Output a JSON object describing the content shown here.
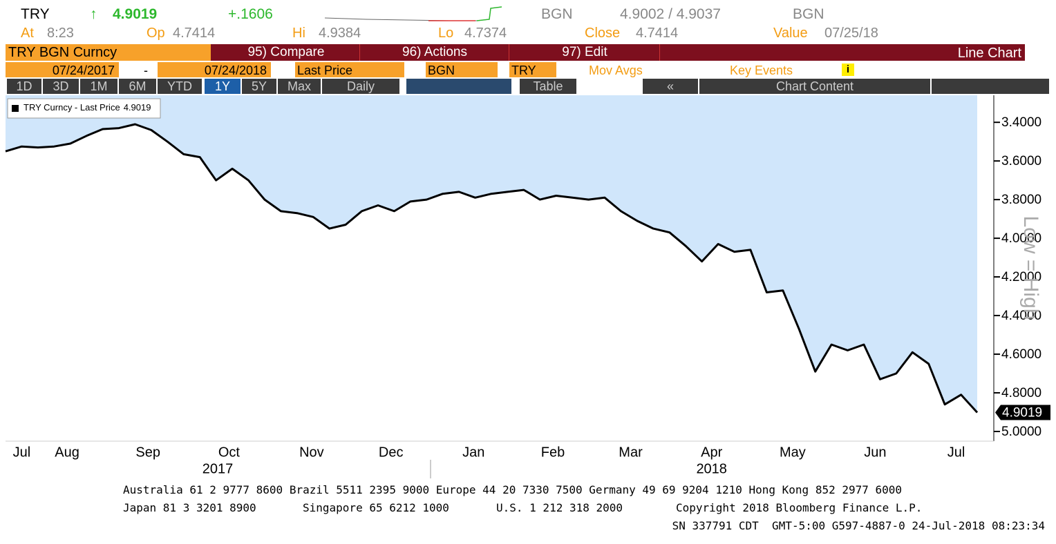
{
  "header": {
    "ticker": "TRY",
    "arrow": "↑",
    "last": "4.9019",
    "change": "+.1606",
    "source": "BGN",
    "bid_ask": "4.9002 / 4.9037",
    "source2": "BGN",
    "stats": [
      {
        "label": "At",
        "value": "8:23"
      },
      {
        "label": "Op",
        "value": "4.7414"
      },
      {
        "label": "Hi",
        "value": "4.9384"
      },
      {
        "label": "Lo",
        "value": "4.7374"
      },
      {
        "label": "Close",
        "value": "4.7414"
      },
      {
        "label": "Value",
        "value": "07/25/18"
      }
    ]
  },
  "menu": {
    "security": "TRY BGN Curncy",
    "items": [
      "95) Compare",
      "96) Actions",
      "97) Edit"
    ],
    "view": "Line Chart"
  },
  "controls": {
    "start": "07/24/2017",
    "dash": "-",
    "end": "07/24/2018",
    "field": "Last Price",
    "source": "BGN",
    "currency": "TRY",
    "mov_avgs": "Mov Avgs",
    "key_events": "Key Events",
    "info": "i"
  },
  "toolbar": {
    "periods": [
      "1D",
      "3D",
      "1M",
      "6M",
      "YTD",
      "1Y",
      "5Y",
      "Max"
    ],
    "selected": "1Y",
    "frequency": "Daily",
    "table": "Table",
    "back": "«",
    "chart_content": "Chart Content"
  },
  "chart_data": {
    "type": "line",
    "inverted": true,
    "y_axis_label": "Low = High",
    "fill": "#d0e6fb",
    "series": [
      {
        "name": "TRY Curncy - Last Price",
        "color": "#000000",
        "values": [
          3.55,
          3.525,
          3.53,
          3.525,
          3.51,
          3.47,
          3.435,
          3.43,
          3.41,
          3.44,
          3.5,
          3.565,
          3.58,
          3.7,
          3.64,
          3.7,
          3.8,
          3.86,
          3.87,
          3.89,
          3.95,
          3.93,
          3.86,
          3.83,
          3.86,
          3.81,
          3.8,
          3.77,
          3.76,
          3.79,
          3.77,
          3.76,
          3.75,
          3.8,
          3.78,
          3.79,
          3.8,
          3.79,
          3.86,
          3.91,
          3.95,
          3.97,
          4.04,
          4.12,
          4.03,
          4.07,
          4.06,
          4.28,
          4.27,
          4.47,
          4.69,
          4.55,
          4.58,
          4.55,
          4.73,
          4.7,
          4.59,
          4.65,
          4.86,
          4.81,
          4.9019
        ]
      }
    ],
    "xlim": [
      0,
      60
    ],
    "xticks": [
      {
        "value": 1.0,
        "label": "Jul"
      },
      {
        "value": 3.8,
        "label": "Aug"
      },
      {
        "value": 8.8,
        "label": "Sep"
      },
      {
        "value": 13.8,
        "label": "Oct"
      },
      {
        "value": 18.9,
        "label": "Nov"
      },
      {
        "value": 23.8,
        "label": "Dec"
      },
      {
        "value": 28.9,
        "label": "Jan"
      },
      {
        "value": 33.8,
        "label": "Feb"
      },
      {
        "value": 38.6,
        "label": "Mar"
      },
      {
        "value": 43.6,
        "label": "Apr"
      },
      {
        "value": 48.6,
        "label": "May"
      },
      {
        "value": 53.7,
        "label": "Jun"
      },
      {
        "value": 58.7,
        "label": "Jul"
      }
    ],
    "year_ticks": [
      {
        "value": 13.1,
        "label": "2017"
      },
      {
        "value": 43.6,
        "label": "2018"
      }
    ],
    "ylim": [
      3.26,
      5.05
    ],
    "yticks": [
      {
        "value": 3.4,
        "label": "3.4000"
      },
      {
        "value": 3.6,
        "label": "3.6000"
      },
      {
        "value": 3.8,
        "label": "3.8000"
      },
      {
        "value": 4.0,
        "label": "4.0000"
      },
      {
        "value": 4.2,
        "label": "4.2000"
      },
      {
        "value": 4.4,
        "label": "4.4000"
      },
      {
        "value": 4.6,
        "label": "4.6000"
      },
      {
        "value": 4.8,
        "label": "4.8000"
      },
      {
        "value": 5.0,
        "label": "5.0000"
      }
    ],
    "grid": false
  },
  "footer": {
    "line1": "Australia 61 2 9777 8600 Brazil 5511 2395 9000 Europe 44 20 7330 7500 Germany 49 69 9204 1210 Hong Kong 852 2977 6000",
    "line2": [
      "Japan 81 3 3201 8900",
      "Singapore 65 6212 1000",
      "U.S. 1 212 318 2000",
      "Copyright 2018 Bloomberg Finance L.P."
    ],
    "line3": "SN 337791 CDT  GMT-5:00 G597-4887-0 24-Jul-2018 08:23:34"
  }
}
